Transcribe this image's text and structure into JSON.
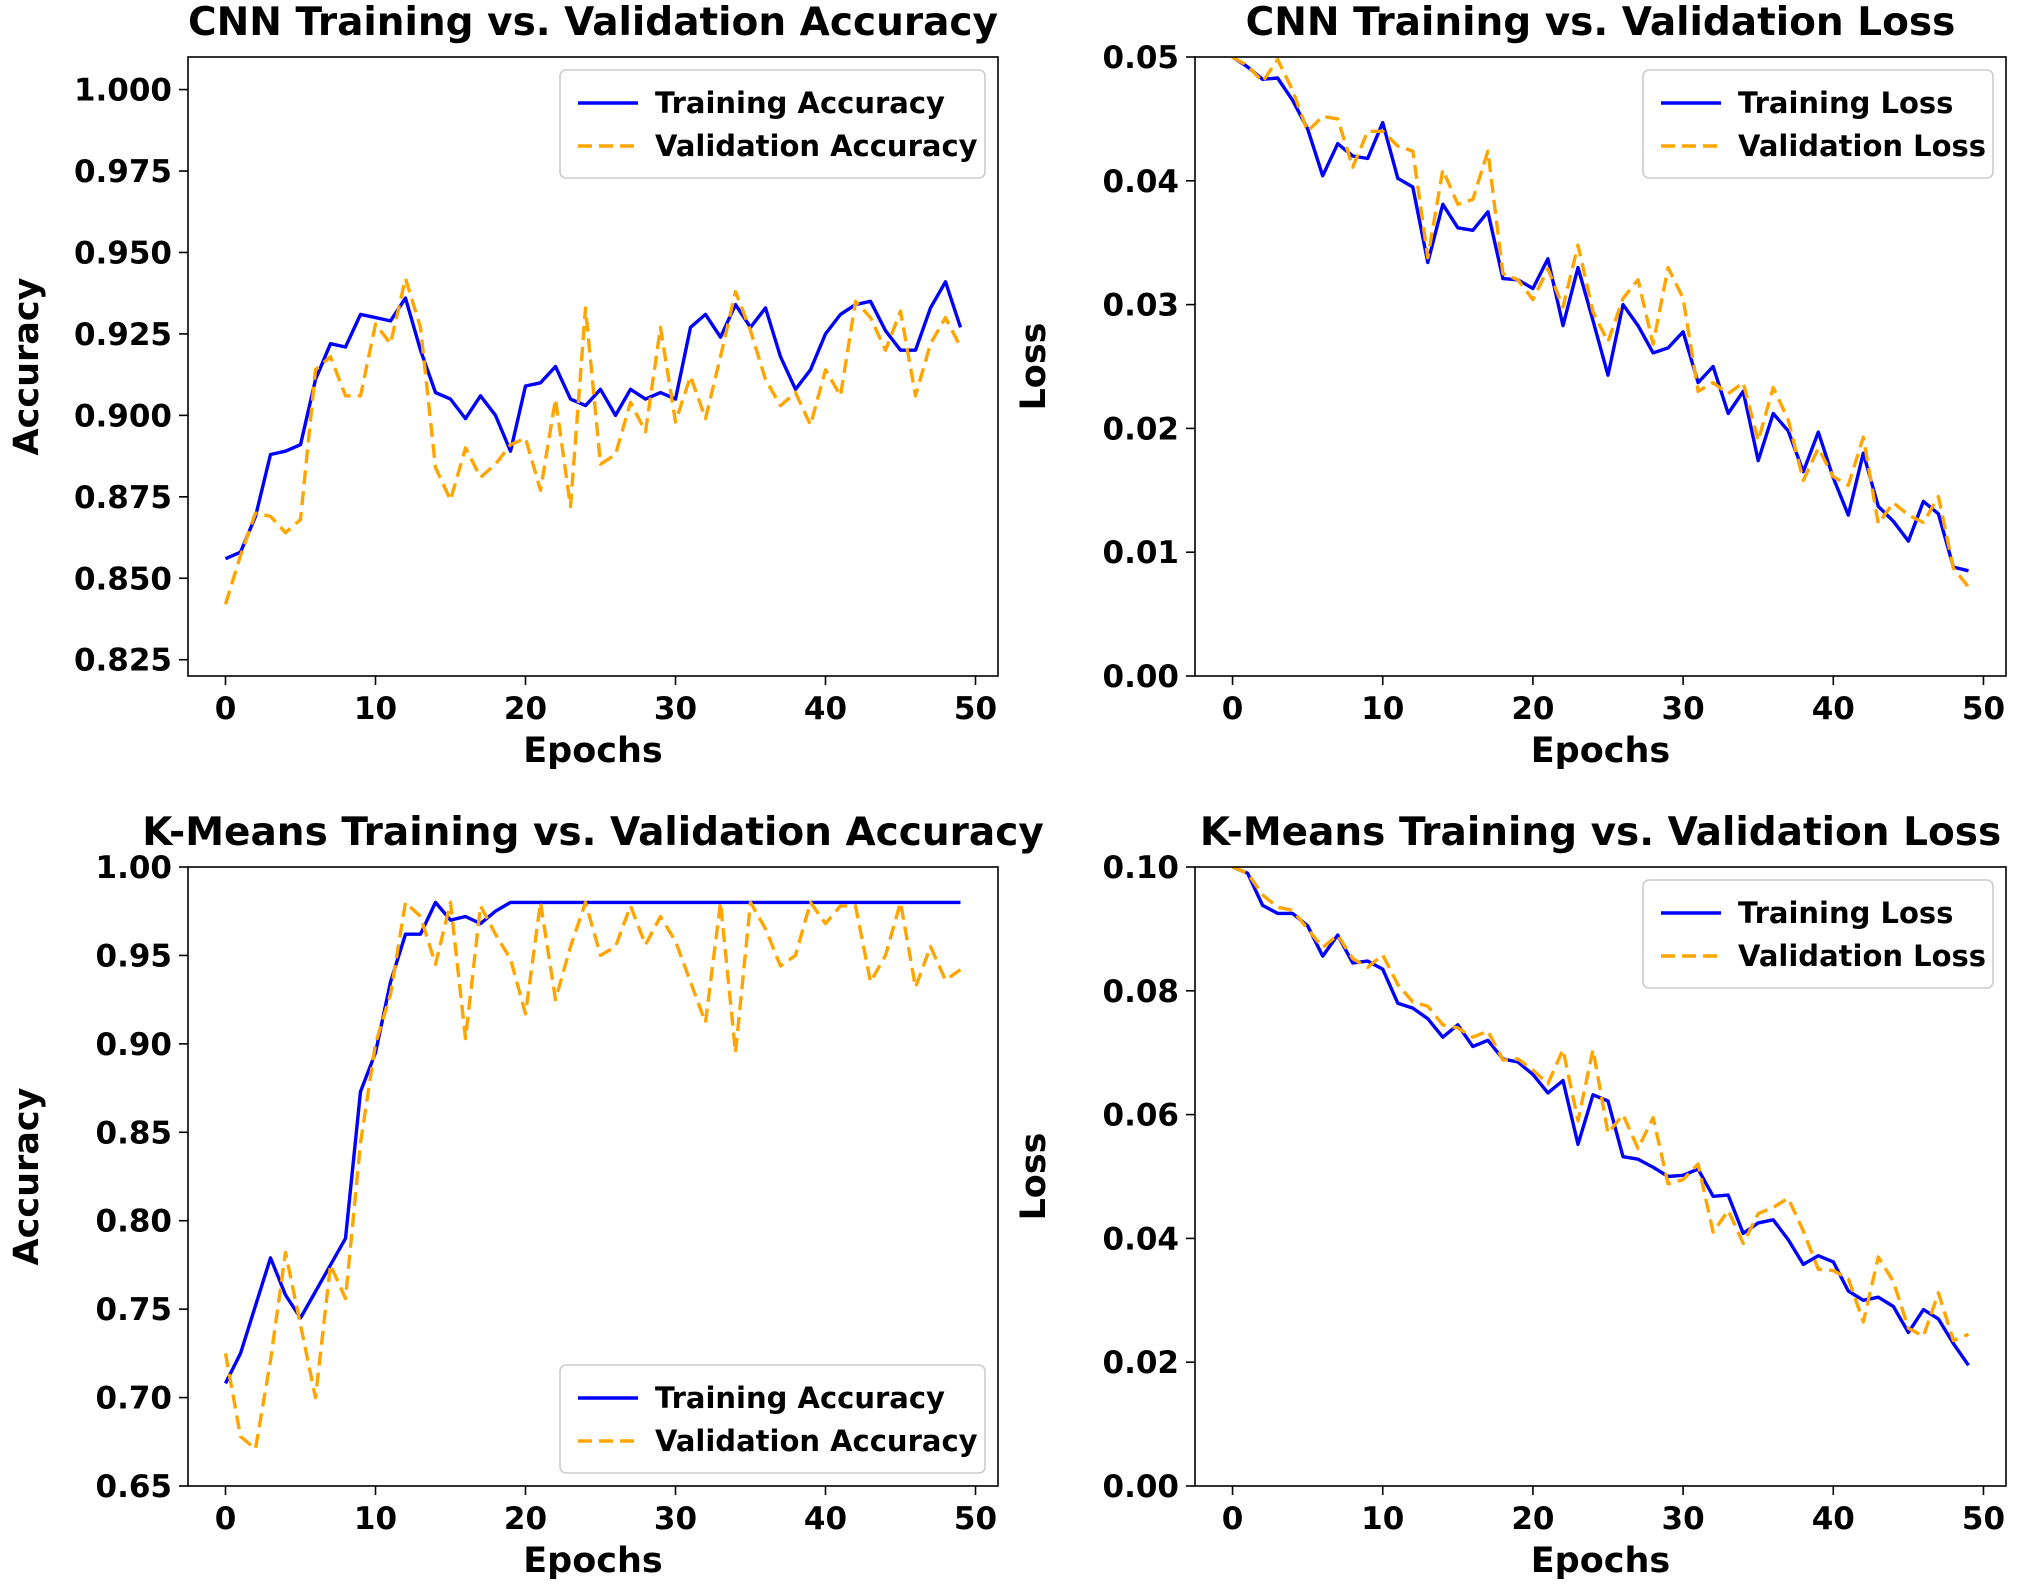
{
  "chart_data": [
    {
      "type": "line",
      "title": "CNN Training vs. Validation Accuracy",
      "xlabel": "Epochs",
      "ylabel": "Accuracy",
      "xlim": [
        -2.5,
        51.5
      ],
      "ylim": [
        0.82,
        1.01
      ],
      "xticks": [
        0,
        10,
        20,
        30,
        40,
        50
      ],
      "yticks": [
        0.825,
        0.85,
        0.875,
        0.9,
        0.925,
        0.95,
        0.975,
        1.0
      ],
      "ytick_labels": [
        "0.825",
        "0.850",
        "0.875",
        "0.900",
        "0.925",
        "0.950",
        "0.975",
        "1.000"
      ],
      "legend_position": "top-right",
      "series": [
        {
          "name": "Training Accuracy",
          "color": "#0000ff",
          "style": "solid",
          "x": [
            0,
            1,
            2,
            3,
            4,
            5,
            6,
            7,
            8,
            9,
            10,
            11,
            12,
            13,
            14,
            15,
            16,
            17,
            18,
            19,
            20,
            21,
            22,
            23,
            24,
            25,
            26,
            27,
            28,
            29,
            30,
            31,
            32,
            33,
            34,
            35,
            36,
            37,
            38,
            39,
            40,
            41,
            42,
            43,
            44,
            45,
            46,
            47,
            48,
            49
          ],
          "values": [
            0.856,
            0.858,
            0.869,
            0.888,
            0.889,
            0.891,
            0.911,
            0.922,
            0.921,
            0.931,
            0.93,
            0.929,
            0.936,
            0.92,
            0.907,
            0.905,
            0.899,
            0.906,
            0.9,
            0.889,
            0.909,
            0.91,
            0.915,
            0.905,
            0.903,
            0.908,
            0.9,
            0.908,
            0.905,
            0.907,
            0.905,
            0.927,
            0.931,
            0.924,
            0.934,
            0.927,
            0.933,
            0.918,
            0.908,
            0.914,
            0.925,
            0.931,
            0.934,
            0.935,
            0.926,
            0.92,
            0.92,
            0.933,
            0.941,
            0.927
          ]
        },
        {
          "name": "Validation Accuracy",
          "color": "#ffa500",
          "style": "dashed",
          "x": [
            0,
            1,
            2,
            3,
            4,
            5,
            6,
            7,
            8,
            9,
            10,
            11,
            12,
            13,
            14,
            15,
            16,
            17,
            18,
            19,
            20,
            21,
            22,
            23,
            24,
            25,
            26,
            27,
            28,
            29,
            30,
            31,
            32,
            33,
            34,
            35,
            36,
            37,
            38,
            39,
            40,
            41,
            42,
            43,
            44,
            45,
            46,
            47,
            48,
            49
          ],
          "values": [
            0.842,
            0.857,
            0.87,
            0.869,
            0.864,
            0.868,
            0.914,
            0.918,
            0.906,
            0.906,
            0.928,
            0.922,
            0.942,
            0.927,
            0.884,
            0.874,
            0.89,
            0.881,
            0.885,
            0.891,
            0.893,
            0.877,
            0.905,
            0.872,
            0.933,
            0.885,
            0.888,
            0.904,
            0.895,
            0.927,
            0.898,
            0.912,
            0.899,
            0.918,
            0.938,
            0.926,
            0.911,
            0.903,
            0.907,
            0.897,
            0.914,
            0.906,
            0.935,
            0.93,
            0.92,
            0.932,
            0.906,
            0.922,
            0.93,
            0.921
          ]
        }
      ]
    },
    {
      "type": "line",
      "title": "CNN Training vs. Validation Loss",
      "xlabel": "Epochs",
      "ylabel": "Loss",
      "xlim": [
        -2.5,
        51.5
      ],
      "ylim": [
        0,
        0.05
      ],
      "xticks": [
        0,
        10,
        20,
        30,
        40,
        50
      ],
      "yticks": [
        0,
        0.01,
        0.02,
        0.03,
        0.04,
        0.05
      ],
      "ytick_labels": [
        "0.00",
        "0.01",
        "0.02",
        "0.03",
        "0.04",
        "0.05"
      ],
      "legend_position": "top-right",
      "series": [
        {
          "name": "Training Loss",
          "color": "#0000ff",
          "style": "solid",
          "x": [
            0,
            1,
            2,
            3,
            4,
            5,
            6,
            7,
            8,
            9,
            10,
            11,
            12,
            13,
            14,
            15,
            16,
            17,
            18,
            19,
            20,
            21,
            22,
            23,
            24,
            25,
            26,
            27,
            28,
            29,
            30,
            31,
            32,
            33,
            34,
            35,
            36,
            37,
            38,
            39,
            40,
            41,
            42,
            43,
            44,
            45,
            46,
            47,
            48,
            49
          ],
          "values": [
            0.05,
            0.0492,
            0.0482,
            0.0483,
            0.0465,
            0.0442,
            0.0404,
            0.043,
            0.042,
            0.0418,
            0.0447,
            0.0402,
            0.0395,
            0.0334,
            0.0381,
            0.0362,
            0.036,
            0.0375,
            0.0321,
            0.032,
            0.0313,
            0.0337,
            0.0283,
            0.033,
            0.0287,
            0.0243,
            0.03,
            0.0283,
            0.0261,
            0.0265,
            0.0278,
            0.0237,
            0.025,
            0.0212,
            0.023,
            0.0174,
            0.0212,
            0.0198,
            0.0165,
            0.0197,
            0.016,
            0.013,
            0.018,
            0.0137,
            0.0125,
            0.0109,
            0.0141,
            0.0131,
            0.0088,
            0.0085
          ]
        },
        {
          "name": "Validation Loss",
          "color": "#ffa500",
          "style": "dashed",
          "x": [
            0,
            1,
            2,
            3,
            4,
            5,
            6,
            7,
            8,
            9,
            10,
            11,
            12,
            13,
            14,
            15,
            16,
            17,
            18,
            19,
            20,
            21,
            22,
            23,
            24,
            25,
            26,
            27,
            28,
            29,
            30,
            31,
            32,
            33,
            34,
            35,
            36,
            37,
            38,
            39,
            40,
            41,
            42,
            43,
            44,
            45,
            46,
            47,
            48,
            49
          ],
          "values": [
            0.05,
            0.0493,
            0.048,
            0.0498,
            0.0473,
            0.044,
            0.0452,
            0.045,
            0.0411,
            0.044,
            0.044,
            0.0428,
            0.0424,
            0.0338,
            0.0409,
            0.0381,
            0.0385,
            0.0424,
            0.0325,
            0.032,
            0.0304,
            0.0329,
            0.0298,
            0.0348,
            0.0294,
            0.027,
            0.0305,
            0.032,
            0.0268,
            0.033,
            0.0305,
            0.023,
            0.0237,
            0.0228,
            0.0237,
            0.019,
            0.0233,
            0.0207,
            0.0158,
            0.0184,
            0.0161,
            0.0154,
            0.0193,
            0.0123,
            0.014,
            0.013,
            0.0124,
            0.0145,
            0.0087,
            0.0072
          ]
        }
      ]
    },
    {
      "type": "line",
      "title": "K-Means Training vs. Validation Accuracy",
      "xlabel": "Epochs",
      "ylabel": "Accuracy",
      "xlim": [
        -2.5,
        51.5
      ],
      "ylim": [
        0.65,
        1.0
      ],
      "xticks": [
        0,
        10,
        20,
        30,
        40,
        50
      ],
      "yticks": [
        0.65,
        0.7,
        0.75,
        0.8,
        0.85,
        0.9,
        0.95,
        1.0
      ],
      "ytick_labels": [
        "0.65",
        "0.70",
        "0.75",
        "0.80",
        "0.85",
        "0.90",
        "0.95",
        "1.00"
      ],
      "legend_position": "bottom-right",
      "series": [
        {
          "name": "Training Accuracy",
          "color": "#0000ff",
          "style": "solid",
          "x": [
            0,
            1,
            2,
            3,
            4,
            5,
            6,
            7,
            8,
            9,
            10,
            11,
            12,
            13,
            14,
            15,
            16,
            17,
            18,
            19,
            20,
            21,
            22,
            23,
            24,
            25,
            26,
            27,
            28,
            29,
            30,
            31,
            32,
            33,
            34,
            35,
            36,
            37,
            38,
            39,
            40,
            41,
            42,
            43,
            44,
            45,
            46,
            47,
            48,
            49
          ],
          "values": [
            0.708,
            0.725,
            0.752,
            0.779,
            0.758,
            0.745,
            0.76,
            0.775,
            0.79,
            0.873,
            0.895,
            0.935,
            0.962,
            0.962,
            0.98,
            0.97,
            0.972,
            0.968,
            0.975,
            0.98,
            0.98,
            0.98,
            0.98,
            0.98,
            0.98,
            0.98,
            0.98,
            0.98,
            0.98,
            0.98,
            0.98,
            0.98,
            0.98,
            0.98,
            0.98,
            0.98,
            0.98,
            0.98,
            0.98,
            0.98,
            0.98,
            0.98,
            0.98,
            0.98,
            0.98,
            0.98,
            0.98,
            0.98,
            0.98,
            0.98
          ]
        },
        {
          "name": "Validation Accuracy",
          "color": "#ffa500",
          "style": "dashed",
          "x": [
            0,
            1,
            2,
            3,
            4,
            5,
            6,
            7,
            8,
            9,
            10,
            11,
            12,
            13,
            14,
            15,
            16,
            17,
            18,
            19,
            20,
            21,
            22,
            23,
            24,
            25,
            26,
            27,
            28,
            29,
            30,
            31,
            32,
            33,
            34,
            35,
            36,
            37,
            38,
            39,
            40,
            41,
            42,
            43,
            44,
            45,
            46,
            47,
            48,
            49
          ],
          "values": [
            0.725,
            0.678,
            0.671,
            0.721,
            0.782,
            0.741,
            0.7,
            0.775,
            0.756,
            0.844,
            0.9,
            0.928,
            0.98,
            0.972,
            0.945,
            0.98,
            0.903,
            0.978,
            0.962,
            0.948,
            0.917,
            0.98,
            0.925,
            0.955,
            0.98,
            0.95,
            0.955,
            0.978,
            0.956,
            0.972,
            0.958,
            0.935,
            0.912,
            0.98,
            0.895,
            0.98,
            0.965,
            0.944,
            0.95,
            0.98,
            0.968,
            0.978,
            0.978,
            0.935,
            0.95,
            0.98,
            0.932,
            0.955,
            0.936,
            0.942
          ]
        }
      ]
    },
    {
      "type": "line",
      "title": "K-Means Training vs. Validation Loss",
      "xlabel": "Epochs",
      "ylabel": "Loss",
      "xlim": [
        -2.5,
        51.5
      ],
      "ylim": [
        0,
        0.1
      ],
      "xticks": [
        0,
        10,
        20,
        30,
        40,
        50
      ],
      "yticks": [
        0,
        0.02,
        0.04,
        0.06,
        0.08,
        0.1
      ],
      "ytick_labels": [
        "0.00",
        "0.02",
        "0.04",
        "0.06",
        "0.08",
        "0.10"
      ],
      "legend_position": "top-right",
      "series": [
        {
          "name": "Training Loss",
          "color": "#0000ff",
          "style": "solid",
          "x": [
            0,
            1,
            2,
            3,
            4,
            5,
            6,
            7,
            8,
            9,
            10,
            11,
            12,
            13,
            14,
            15,
            16,
            17,
            18,
            19,
            20,
            21,
            22,
            23,
            24,
            25,
            26,
            27,
            28,
            29,
            30,
            31,
            32,
            33,
            34,
            35,
            36,
            37,
            38,
            39,
            40,
            41,
            42,
            43,
            44,
            45,
            46,
            47,
            48,
            49
          ],
          "values": [
            0.1,
            0.099,
            0.0938,
            0.0925,
            0.0925,
            0.0905,
            0.0856,
            0.089,
            0.0845,
            0.0848,
            0.0835,
            0.078,
            0.0772,
            0.0755,
            0.0725,
            0.0745,
            0.071,
            0.072,
            0.069,
            0.0685,
            0.0665,
            0.0635,
            0.0655,
            0.0552,
            0.0632,
            0.0622,
            0.0532,
            0.0528,
            0.0515,
            0.05,
            0.0502,
            0.0512,
            0.0468,
            0.047,
            0.0408,
            0.0425,
            0.043,
            0.0398,
            0.0358,
            0.0372,
            0.0362,
            0.0315,
            0.03,
            0.0305,
            0.029,
            0.0248,
            0.0285,
            0.027,
            0.023,
            0.0195
          ]
        },
        {
          "name": "Validation Loss",
          "color": "#ffa500",
          "style": "dashed",
          "x": [
            0,
            1,
            2,
            3,
            4,
            5,
            6,
            7,
            8,
            9,
            10,
            11,
            12,
            13,
            14,
            15,
            16,
            17,
            18,
            19,
            20,
            21,
            22,
            23,
            24,
            25,
            26,
            27,
            28,
            29,
            30,
            31,
            32,
            33,
            34,
            35,
            36,
            37,
            38,
            39,
            40,
            41,
            42,
            43,
            44,
            45,
            46,
            47,
            48,
            49
          ],
          "values": [
            0.1,
            0.099,
            0.0955,
            0.0935,
            0.093,
            0.09,
            0.087,
            0.089,
            0.0852,
            0.0838,
            0.0858,
            0.081,
            0.0782,
            0.0775,
            0.0745,
            0.074,
            0.0725,
            0.0735,
            0.0688,
            0.069,
            0.0672,
            0.065,
            0.0705,
            0.059,
            0.0705,
            0.057,
            0.06,
            0.0545,
            0.0595,
            0.0488,
            0.0495,
            0.052,
            0.041,
            0.0445,
            0.0392,
            0.044,
            0.045,
            0.0465,
            0.0412,
            0.035,
            0.0348,
            0.0335,
            0.0265,
            0.037,
            0.033,
            0.0255,
            0.0242,
            0.0312,
            0.0235,
            0.0245
          ]
        }
      ]
    }
  ]
}
